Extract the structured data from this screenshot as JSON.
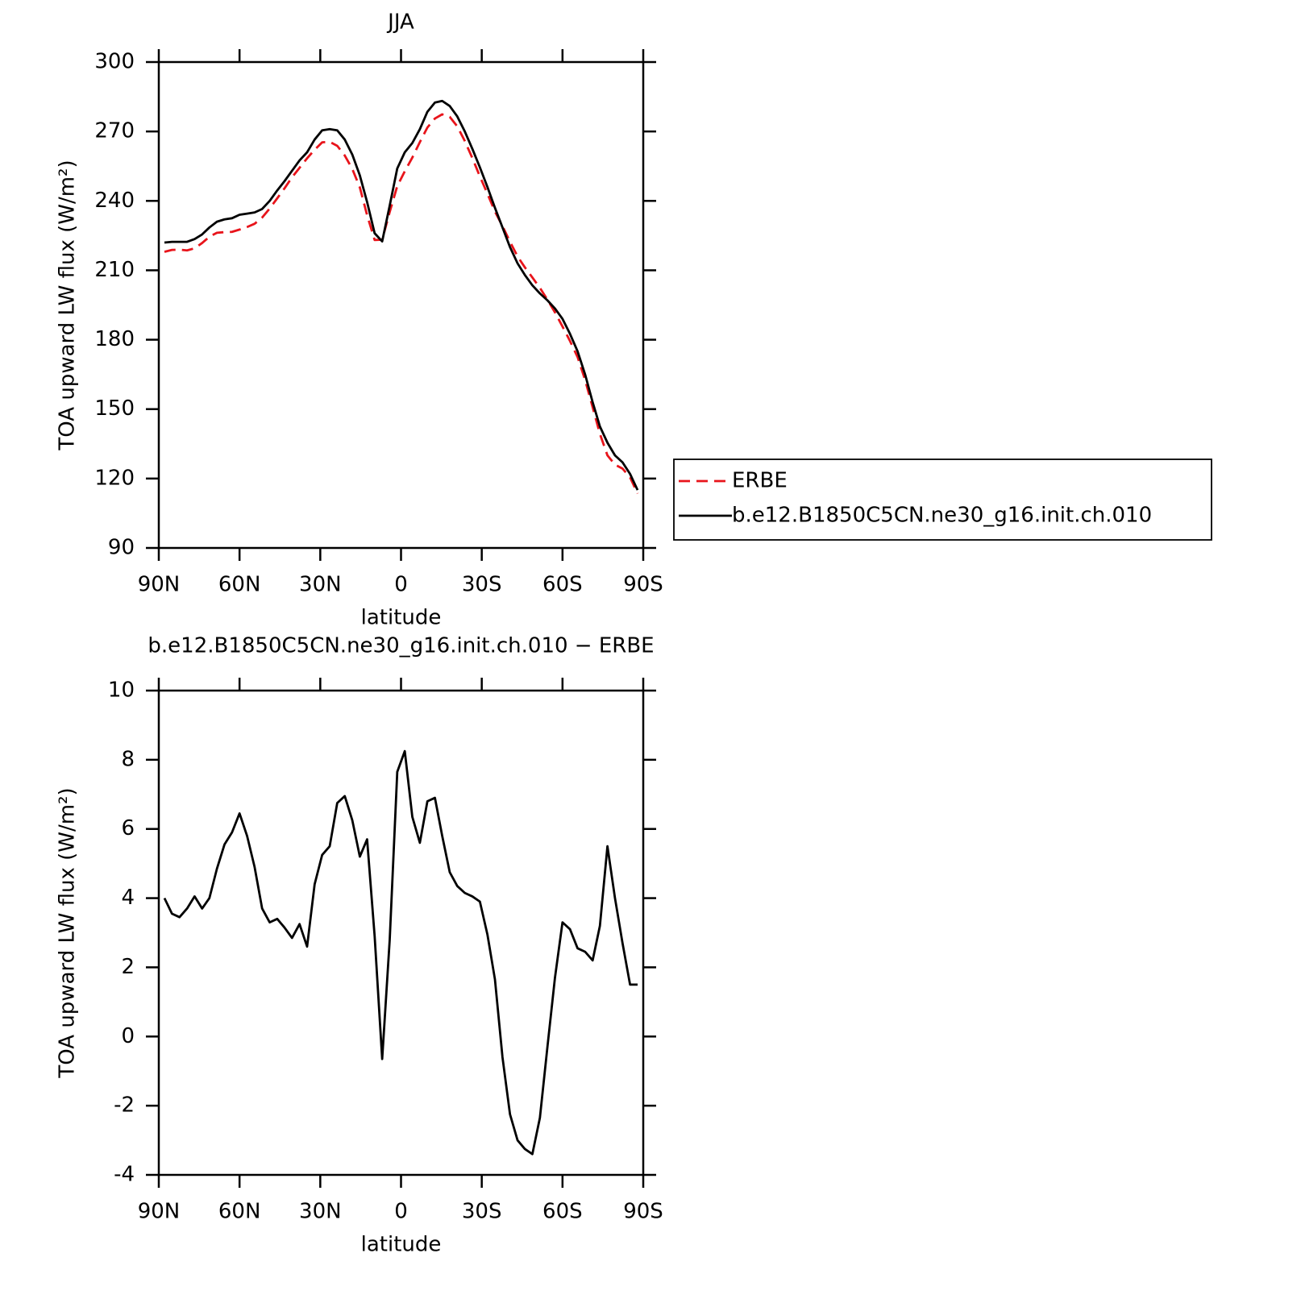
{
  "chart_data": [
    {
      "type": "line",
      "title": "JJA",
      "xlabel": "latitude",
      "ylabel": "TOA upward LW flux (W/m²)",
      "x": [
        87.9,
        85.1,
        82.3,
        79.5,
        76.7,
        73.9,
        71.2,
        68.4,
        65.6,
        62.8,
        60.0,
        57.2,
        54.4,
        51.6,
        48.8,
        46.0,
        43.3,
        40.5,
        37.7,
        34.9,
        32.1,
        29.3,
        26.5,
        23.7,
        20.9,
        18.1,
        15.3,
        12.6,
        9.8,
        7.0,
        4.2,
        1.4,
        -1.4,
        -4.2,
        -7.0,
        -9.8,
        -12.6,
        -15.3,
        -18.1,
        -20.9,
        -23.7,
        -26.5,
        -29.3,
        -32.1,
        -34.9,
        -37.7,
        -40.5,
        -43.3,
        -46.0,
        -48.8,
        -51.6,
        -54.4,
        -57.2,
        -60.0,
        -62.8,
        -65.6,
        -68.4,
        -71.2,
        -73.9,
        -76.7,
        -79.5,
        -82.3,
        -85.1,
        -87.9
      ],
      "series": [
        {
          "name": "ERBE",
          "color": "#e8141b",
          "line_style": "dashed",
          "values": [
            218.0,
            218.8,
            218.9,
            218.6,
            219.5,
            221.8,
            224.5,
            226.2,
            226.5,
            226.6,
            227.6,
            228.7,
            230.1,
            232.8,
            236.7,
            241.1,
            245.4,
            250.2,
            254.3,
            258.4,
            262.1,
            265.3,
            265.5,
            263.8,
            259.6,
            253.8,
            245.8,
            233.8,
            223.1,
            223.2,
            235.2,
            246.4,
            252.8,
            258.7,
            265.4,
            271.7,
            275.6,
            277.4,
            276.3,
            272.2,
            265.9,
            258.5,
            250.6,
            243.1,
            235.4,
            229.1,
            222.3,
            216.0,
            211.3,
            206.9,
            202.4,
            197.3,
            191.8,
            185.7,
            179.4,
            172.5,
            162.6,
            150.8,
            139.3,
            130.0,
            126.0,
            124.3,
            120.5,
            113.5
          ]
        },
        {
          "name": "b.e12.B1850C5CN.ne30_g16.init.ch.010",
          "color": "#000000",
          "line_style": "solid",
          "values": [
            222.0,
            222.3,
            222.3,
            222.3,
            223.5,
            225.5,
            228.5,
            231.0,
            232.0,
            232.5,
            234.0,
            234.5,
            235.0,
            236.5,
            240.0,
            244.5,
            248.5,
            253.0,
            257.5,
            261.0,
            266.5,
            270.5,
            271.0,
            270.5,
            266.5,
            260.0,
            251.0,
            239.5,
            226.0,
            222.5,
            238.0,
            254.0,
            261.0,
            265.0,
            271.0,
            278.5,
            282.5,
            283.2,
            281.0,
            276.5,
            270.0,
            262.5,
            254.5,
            246.0,
            237.0,
            228.5,
            220.0,
            213.0,
            208.0,
            203.5,
            200.0,
            197.0,
            193.5,
            189.0,
            182.5,
            175.0,
            165.0,
            153.0,
            142.5,
            135.5,
            130.0,
            127.0,
            122.0,
            115.0
          ]
        }
      ],
      "xlim": [
        90,
        -90
      ],
      "xticks": [
        {
          "value": 90,
          "label": "90N"
        },
        {
          "value": 60,
          "label": "60N"
        },
        {
          "value": 30,
          "label": "30N"
        },
        0,
        {
          "value": -30,
          "label": "30S"
        },
        {
          "value": -60,
          "label": "60S"
        },
        {
          "value": -90,
          "label": "90S"
        }
      ],
      "ylim": [
        90,
        300
      ],
      "yticks": [
        90,
        120,
        150,
        180,
        210,
        240,
        270,
        300
      ],
      "legend": "right"
    },
    {
      "type": "line",
      "title": "b.e12.B1850C5CN.ne30_g16.init.ch.010 − ERBE",
      "xlabel": "latitude",
      "ylabel": "TOA upward LW flux (W/m²)",
      "x": [
        87.9,
        85.1,
        82.3,
        79.5,
        76.7,
        73.9,
        71.2,
        68.4,
        65.6,
        62.8,
        60.0,
        57.2,
        54.4,
        51.6,
        48.8,
        46.0,
        43.3,
        40.5,
        37.7,
        34.9,
        32.1,
        29.3,
        26.5,
        23.7,
        20.9,
        18.1,
        15.3,
        12.6,
        9.8,
        7.0,
        4.2,
        1.4,
        -1.4,
        -4.2,
        -7.0,
        -9.8,
        -12.6,
        -15.3,
        -18.1,
        -20.9,
        -23.7,
        -26.5,
        -29.3,
        -32.1,
        -34.9,
        -37.7,
        -40.5,
        -43.3,
        -46.0,
        -48.8,
        -51.6,
        -54.4,
        -57.2,
        -60.0,
        -62.8,
        -65.6,
        -68.4,
        -71.2,
        -73.9,
        -76.7,
        -79.5,
        -82.3,
        -85.1,
        -87.9
      ],
      "values": [
        4.0,
        3.55,
        3.45,
        3.7,
        4.05,
        3.7,
        4.0,
        4.85,
        5.55,
        5.9,
        6.45,
        5.8,
        4.9,
        3.7,
        3.3,
        3.4,
        3.15,
        2.85,
        3.25,
        2.6,
        4.4,
        5.25,
        5.5,
        6.75,
        6.95,
        6.25,
        5.2,
        5.7,
        2.9,
        -0.65,
        2.8,
        7.65,
        8.25,
        6.35,
        5.6,
        6.8,
        6.9,
        5.8,
        4.75,
        4.35,
        4.15,
        4.05,
        3.9,
        2.95,
        1.65,
        -0.6,
        -2.25,
        -3.0,
        -3.25,
        -3.4,
        -2.35,
        -0.3,
        1.7,
        3.3,
        3.1,
        2.55,
        2.45,
        2.2,
        3.2,
        5.5,
        4.0,
        2.7,
        1.5,
        1.5
      ],
      "color": "#000000",
      "xlim": [
        90,
        -90
      ],
      "xticks": [
        {
          "value": 90,
          "label": "90N"
        },
        {
          "value": 60,
          "label": "60N"
        },
        {
          "value": 30,
          "label": "30N"
        },
        0,
        {
          "value": -30,
          "label": "30S"
        },
        {
          "value": -60,
          "label": "60S"
        },
        {
          "value": -90,
          "label": "90S"
        }
      ],
      "ylim": [
        -4,
        10
      ],
      "yticks": [
        -4,
        -2,
        0,
        2,
        4,
        6,
        8,
        10
      ]
    }
  ]
}
